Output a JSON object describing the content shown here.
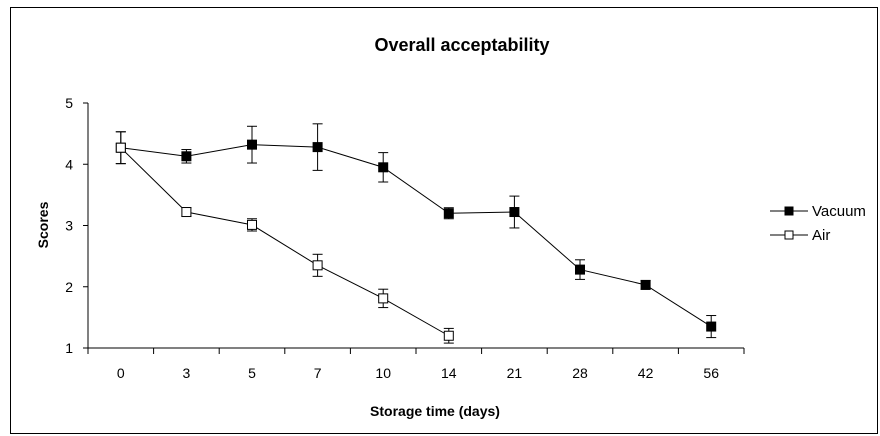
{
  "chart_data": {
    "type": "line",
    "title": "Overall acceptability",
    "xlabel": "Storage time (days)",
    "ylabel": "Scores",
    "ylim": [
      1,
      5
    ],
    "yticks": [
      1,
      2,
      3,
      4,
      5
    ],
    "categories": [
      "0",
      "3",
      "5",
      "7",
      "10",
      "14",
      "21",
      "28",
      "42",
      "56"
    ],
    "grid": false,
    "legend_position": "right",
    "series": [
      {
        "name": "Vacuum",
        "marker": "filled-square",
        "color": "#000000",
        "values": [
          4.27,
          4.13,
          4.32,
          4.28,
          3.95,
          3.2,
          3.22,
          2.28,
          2.03,
          1.35
        ],
        "errors": [
          0.26,
          0.11,
          0.3,
          0.38,
          0.24,
          0.09,
          0.26,
          0.16,
          0.07,
          0.18
        ]
      },
      {
        "name": "Air",
        "marker": "open-square",
        "color": "#000000",
        "values": [
          4.27,
          3.22,
          3.01,
          2.35,
          1.81,
          1.2,
          null,
          null,
          null,
          null
        ],
        "errors": [
          0.26,
          0.07,
          0.1,
          0.18,
          0.15,
          0.12,
          null,
          null,
          null,
          null
        ]
      }
    ]
  }
}
